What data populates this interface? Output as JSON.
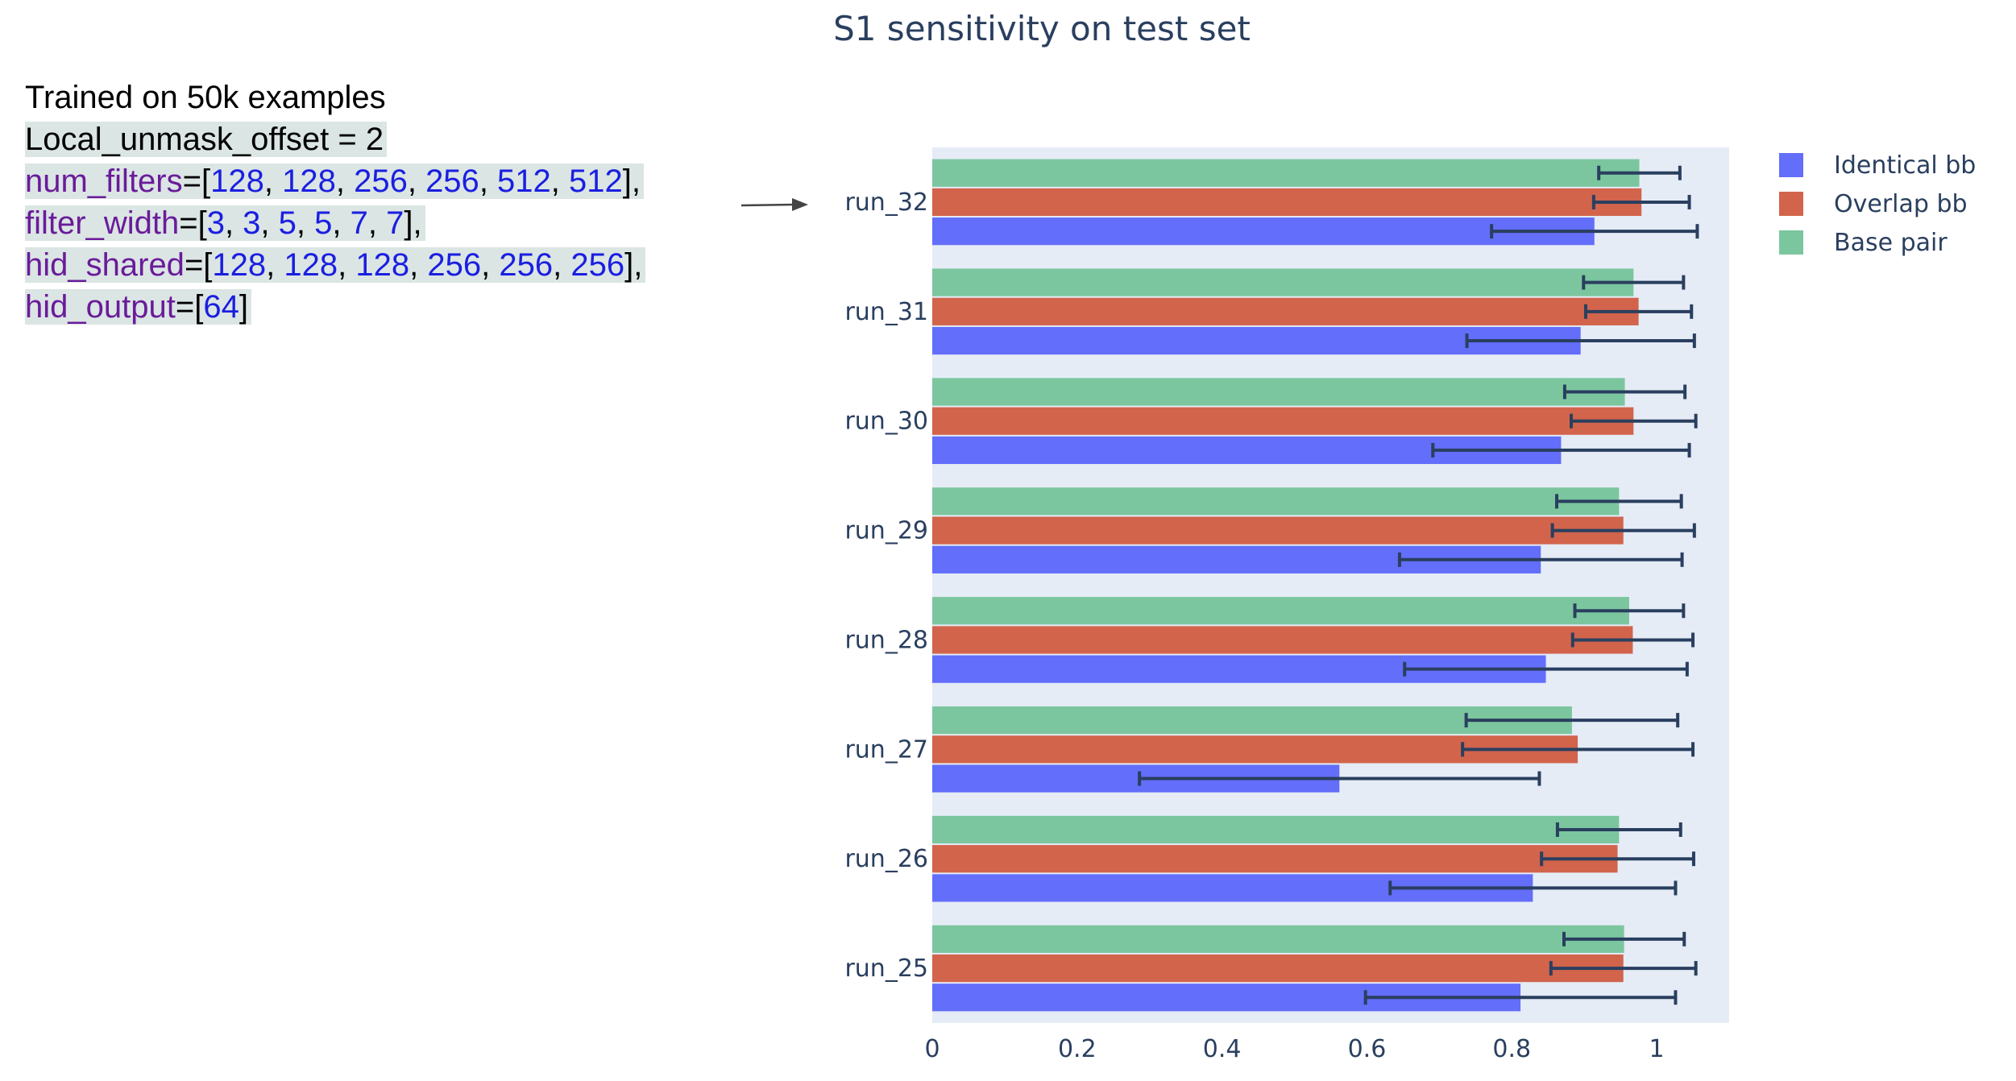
{
  "annotation": {
    "lines": [
      {
        "highlight": false,
        "parts": [
          {
            "t": "Trained on 50k examples",
            "k": "plain"
          }
        ]
      },
      {
        "highlight": true,
        "parts": [
          {
            "t": "Local_unmask_offset = 2",
            "k": "plain"
          }
        ]
      },
      {
        "highlight": true,
        "parts": [
          {
            "t": "num_filters",
            "k": "name"
          },
          {
            "t": "=[",
            "k": "punc"
          },
          {
            "t": "128",
            "k": "num"
          },
          {
            "t": ", ",
            "k": "punc"
          },
          {
            "t": "128",
            "k": "num"
          },
          {
            "t": ", ",
            "k": "punc"
          },
          {
            "t": "256",
            "k": "num"
          },
          {
            "t": ", ",
            "k": "punc"
          },
          {
            "t": "256",
            "k": "num"
          },
          {
            "t": ", ",
            "k": "punc"
          },
          {
            "t": "512",
            "k": "num"
          },
          {
            "t": ", ",
            "k": "punc"
          },
          {
            "t": "512",
            "k": "num"
          },
          {
            "t": "],",
            "k": "punc"
          }
        ]
      },
      {
        "highlight": true,
        "parts": [
          {
            "t": "filter_width",
            "k": "name"
          },
          {
            "t": "=[",
            "k": "punc"
          },
          {
            "t": "3",
            "k": "num"
          },
          {
            "t": ", ",
            "k": "punc"
          },
          {
            "t": "3",
            "k": "num"
          },
          {
            "t": ", ",
            "k": "punc"
          },
          {
            "t": "5",
            "k": "num"
          },
          {
            "t": ", ",
            "k": "punc"
          },
          {
            "t": "5",
            "k": "num"
          },
          {
            "t": ", ",
            "k": "punc"
          },
          {
            "t": "7",
            "k": "num"
          },
          {
            "t": ", ",
            "k": "punc"
          },
          {
            "t": "7",
            "k": "num"
          },
          {
            "t": "],",
            "k": "punc"
          }
        ]
      },
      {
        "highlight": true,
        "parts": [
          {
            "t": "hid_shared",
            "k": "name"
          },
          {
            "t": "=[",
            "k": "punc"
          },
          {
            "t": "128",
            "k": "num"
          },
          {
            "t": ", ",
            "k": "punc"
          },
          {
            "t": "128",
            "k": "num"
          },
          {
            "t": ", ",
            "k": "punc"
          },
          {
            "t": "128",
            "k": "num"
          },
          {
            "t": ", ",
            "k": "punc"
          },
          {
            "t": "256",
            "k": "num"
          },
          {
            "t": ", ",
            "k": "punc"
          },
          {
            "t": "256",
            "k": "num"
          },
          {
            "t": ", ",
            "k": "punc"
          },
          {
            "t": "256",
            "k": "num"
          },
          {
            "t": "],",
            "k": "punc"
          }
        ]
      },
      {
        "highlight": true,
        "parts": [
          {
            "t": "hid_output",
            "k": "name"
          },
          {
            "t": "=[",
            "k": "punc"
          },
          {
            "t": "64",
            "k": "num"
          },
          {
            "t": "]",
            "k": "punc"
          }
        ]
      }
    ]
  },
  "colors": {
    "identical": "#636efa",
    "overlap": "#d2644c",
    "base": "#7bc69e",
    "plot_bg": "#e5ecf6",
    "error": "#2a3f5f",
    "text": "#2a3f5f",
    "arrow": "#444444"
  },
  "chart_data": {
    "type": "bar",
    "orientation": "horizontal",
    "title": "S1 sensitivity on test set",
    "categories": [
      "run_25",
      "run_26",
      "run_27",
      "run_28",
      "run_29",
      "run_30",
      "run_31",
      "run_32"
    ],
    "xlim": [
      0,
      1.1
    ],
    "xticks": [
      0,
      0.2,
      0.4,
      0.6,
      0.8,
      1
    ],
    "xtick_labels": [
      "0",
      "0.2",
      "0.4",
      "0.6",
      "0.8",
      "1"
    ],
    "grid": false,
    "legend_position": "top-right",
    "series": [
      {
        "name": "Identical bb",
        "color_key": "identical",
        "values": [
          0.812,
          0.829,
          0.562,
          0.847,
          0.84,
          0.868,
          0.895,
          0.914
        ],
        "errors": [
          0.214,
          0.197,
          0.276,
          0.195,
          0.195,
          0.177,
          0.157,
          0.142
        ]
      },
      {
        "name": "Overlap bb",
        "color_key": "overlap",
        "values": [
          0.954,
          0.946,
          0.891,
          0.967,
          0.954,
          0.968,
          0.975,
          0.979
        ],
        "errors": [
          0.1,
          0.105,
          0.159,
          0.083,
          0.098,
          0.086,
          0.073,
          0.066
        ]
      },
      {
        "name": "Base pair",
        "color_key": "base",
        "values": [
          0.955,
          0.948,
          0.883,
          0.962,
          0.948,
          0.956,
          0.968,
          0.976
        ],
        "errors": [
          0.083,
          0.085,
          0.146,
          0.075,
          0.086,
          0.083,
          0.069,
          0.056
        ]
      }
    ]
  }
}
